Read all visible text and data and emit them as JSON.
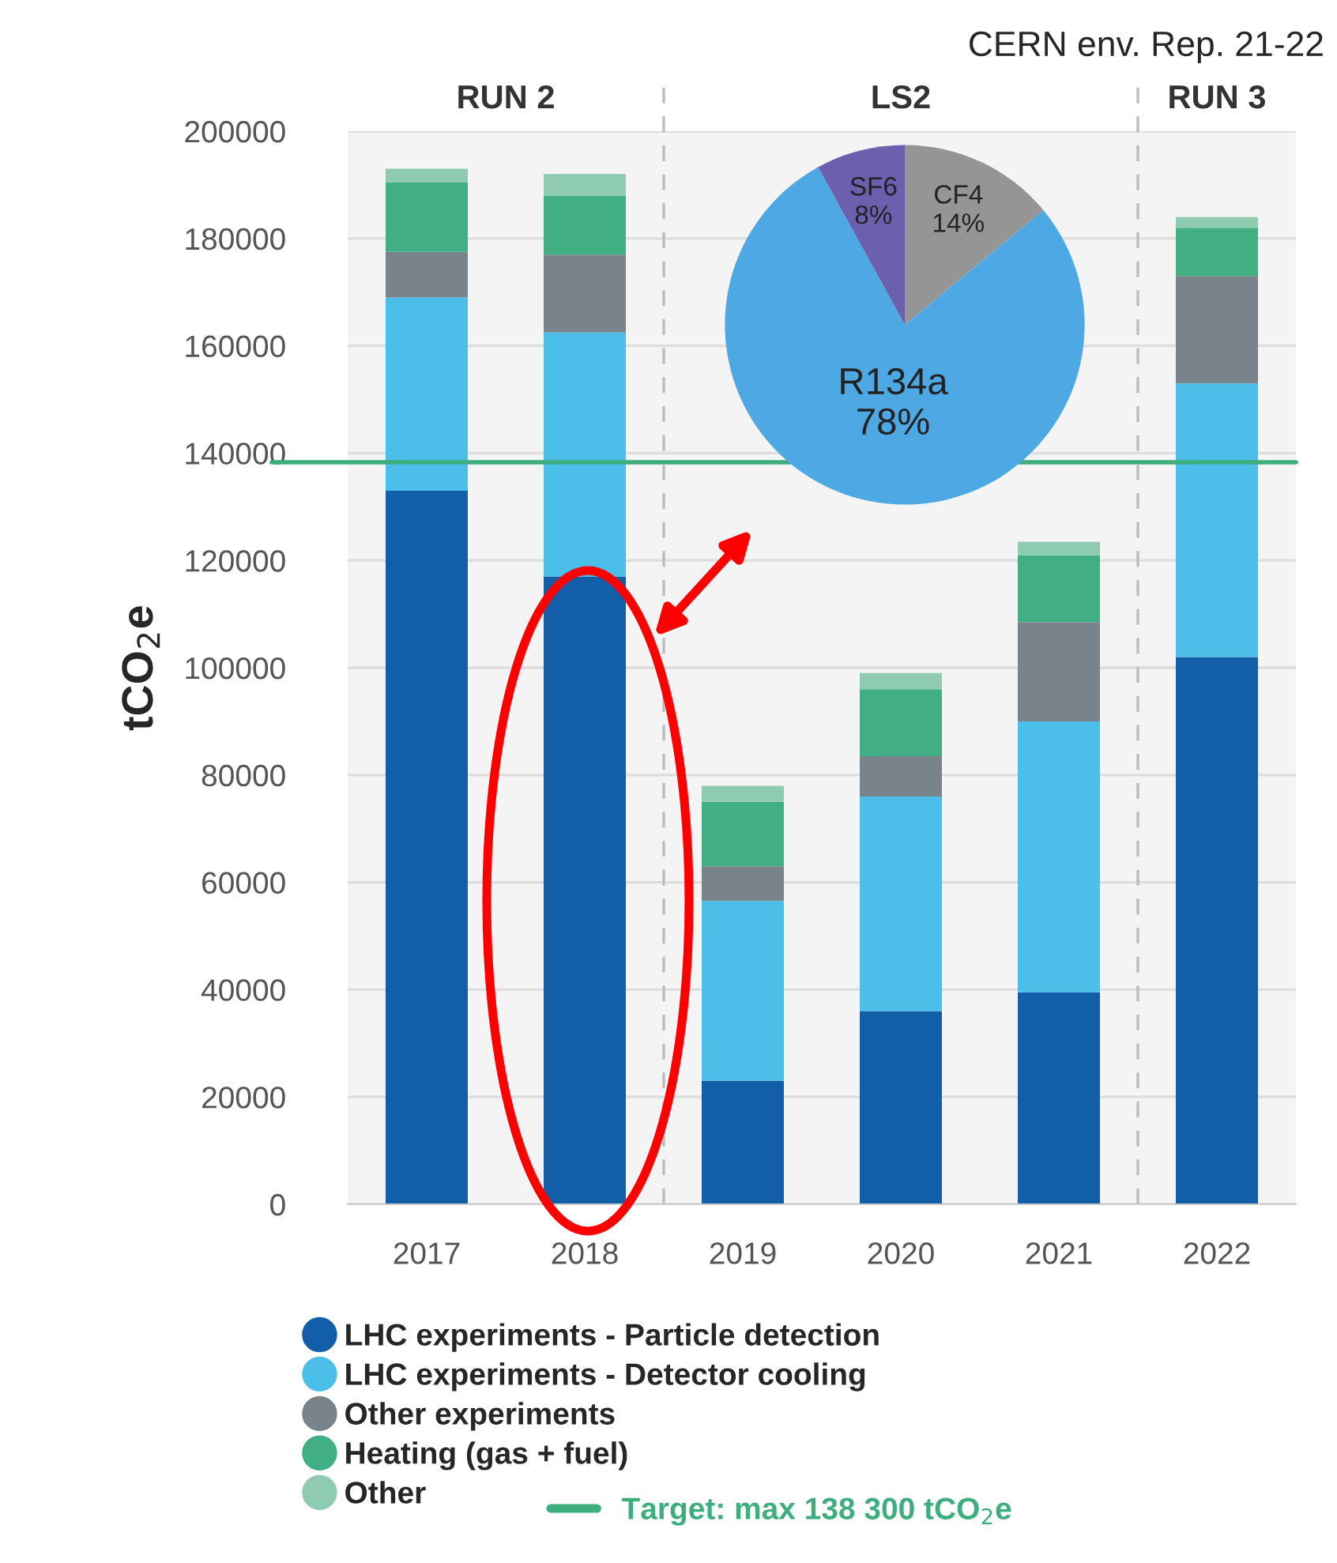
{
  "chart_data": [
    {
      "type": "bar",
      "stacked": true,
      "ylabel": "tCO$_{2}$e",
      "categories": [
        "2017",
        "2018",
        "2019",
        "2020",
        "2021",
        "2022"
      ],
      "series": [
        {
          "name": "LHC experiments - Particle detection",
          "color": "#125ea8",
          "values": [
            133000,
            117000,
            23000,
            36000,
            39500,
            102000
          ]
        },
        {
          "name": "LHC experiments - Detector cooling",
          "color": "#4bbfe9",
          "values": [
            36000,
            45500,
            33500,
            40000,
            50500,
            51000
          ]
        },
        {
          "name": "Other experiments",
          "color": "#78838c",
          "values": [
            8500,
            14500,
            6500,
            7500,
            18500,
            20000
          ]
        },
        {
          "name": "Heating (gas + fuel)",
          "color": "#41ae84",
          "values": [
            13000,
            11000,
            12000,
            12500,
            12500,
            9000
          ]
        },
        {
          "name": "Other",
          "color": "#8fcbb1",
          "values": [
            2500,
            4000,
            3000,
            3000,
            2500,
            2000
          ]
        }
      ],
      "ylim": [
        0,
        200000
      ],
      "yticks": [
        0,
        20000,
        40000,
        60000,
        80000,
        100000,
        120000,
        140000,
        160000,
        180000,
        200000
      ],
      "grid": "y",
      "legend": "bottom",
      "ref_lines": [
        {
          "axis": "y",
          "value": 138300,
          "label": "Target: max 138 300 tCO$_{2}$e",
          "color": "#3fae7f"
        }
      ],
      "bands": [
        {
          "axis": "x",
          "from": "2017",
          "to": "2018",
          "label": "RUN 2",
          "color": "#f4f4f4"
        },
        {
          "axis": "x",
          "from": "2019",
          "to": "2021",
          "label": "LS2",
          "color": "#f4f4f4"
        },
        {
          "axis": "x",
          "from": "2022",
          "to": "2022",
          "label": "RUN 3",
          "color": "#f4f4f4"
        }
      ],
      "annotations": [
        "CERN env. Rep. 21-22"
      ]
    },
    {
      "type": "pie",
      "categories": [
        "CF4",
        "R134a",
        "SF6"
      ],
      "values": [
        14,
        78,
        8
      ],
      "colors": [
        "#959595",
        "#4ea8e3",
        "#6c5fae"
      ],
      "value_labels": [
        "14%",
        "78%",
        "8%"
      ]
    }
  ]
}
